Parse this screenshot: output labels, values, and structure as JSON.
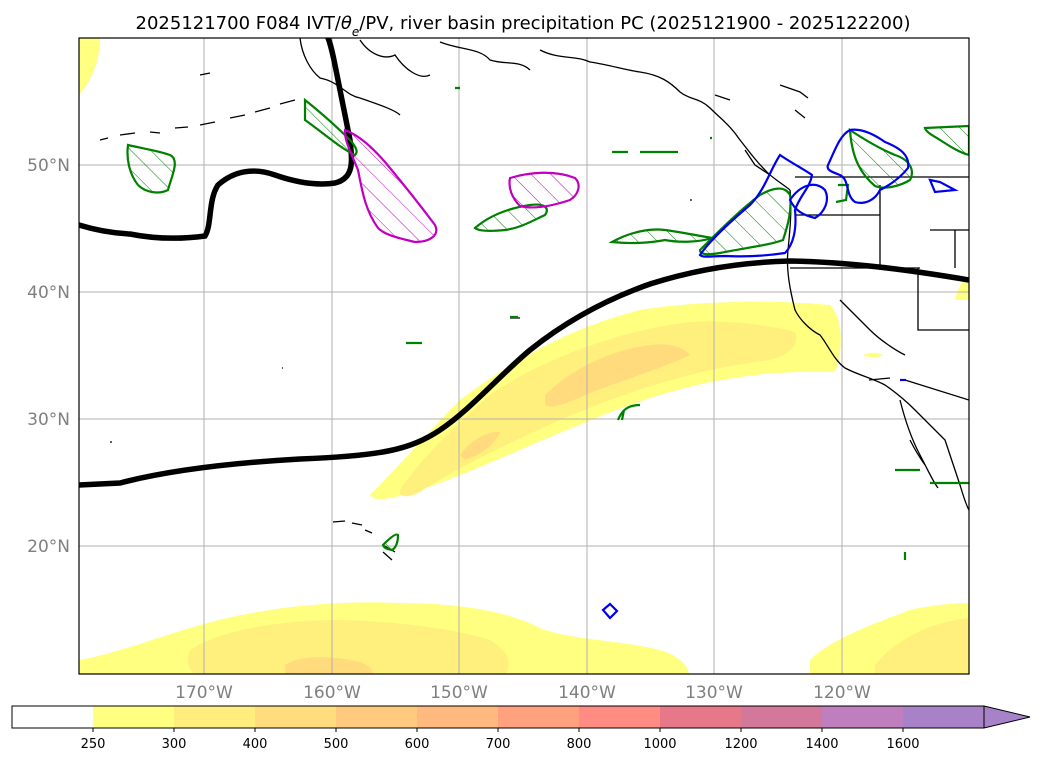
{
  "title": "2025121700 F084 IVT/θₑ/PV, river basin precipitation PC (2025121900 - 2025122200)",
  "title_parts": {
    "prefix": "2025121700 F084 IVT/",
    "theta": "θ",
    "sub": "e",
    "suffix": "/PV, river basin precipitation PC (2025121900 - 2025122200)"
  },
  "map": {
    "lat_labels": [
      "50°N",
      "40°N",
      "30°N",
      "20°N"
    ],
    "lon_labels": [
      "170°W",
      "160°W",
      "150°W",
      "140°W",
      "130°W",
      "120°W"
    ]
  },
  "colorbar": {
    "ticks": [
      "250",
      "300",
      "400",
      "500",
      "600",
      "700",
      "800",
      "1000",
      "1200",
      "1400",
      "1600"
    ],
    "colors": [
      "#ffffff",
      "#ffff80",
      "#ffee7e",
      "#ffdc7e",
      "#ffca7e",
      "#ffb87e",
      "#ffa07e",
      "#ff8c82",
      "#e6788a",
      "#d3789a",
      "#bf7fbf",
      "#a882c8"
    ],
    "extend": "max"
  },
  "colors": {
    "ivt_1": "#ffff80",
    "ivt_2": "#fff07e",
    "ivt_3": "#ffdb7e",
    "pv_contour": "#000000",
    "green_contour": "#008000",
    "magenta_contour": "#c000c0",
    "blue_contour": "#0000ee",
    "grid": "#b0b0b0"
  }
}
